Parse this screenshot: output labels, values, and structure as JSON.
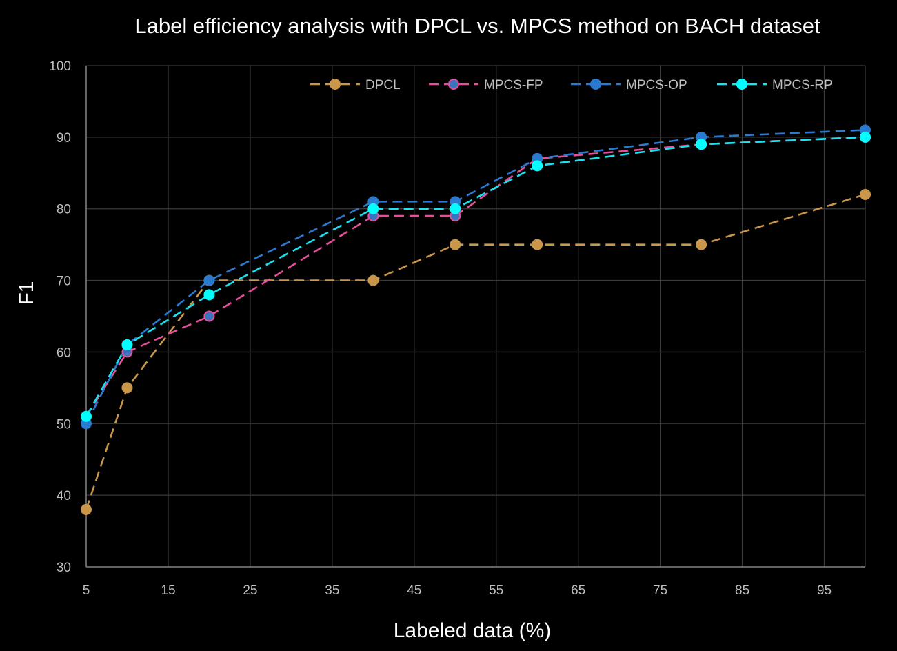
{
  "chart_data": {
    "type": "line",
    "title": "Label efficiency analysis with DPCL vs. MPCS method on BACH dataset",
    "xlabel": "Labeled data (%)",
    "ylabel": "F1",
    "xlim": [
      5,
      100
    ],
    "ylim": [
      30,
      100
    ],
    "xticks": [
      5,
      15,
      25,
      35,
      45,
      55,
      65,
      75,
      85,
      95
    ],
    "yticks": [
      30,
      40,
      50,
      60,
      70,
      80,
      90,
      100
    ],
    "grid": true,
    "legend_position": "top-right",
    "x": [
      5,
      10,
      20,
      40,
      50,
      60,
      80,
      100
    ],
    "series": [
      {
        "name": "DPCL",
        "color": "#c9964a",
        "marker_fill": "#c9964a",
        "marker_edge": "#c9964a",
        "values": [
          38,
          55,
          70,
          70,
          75,
          75,
          75,
          82
        ]
      },
      {
        "name": "MPCS-FP",
        "color": "#e64f9a",
        "marker_fill": "#3c73c0",
        "marker_edge": "#e64f9a",
        "values": [
          51,
          60,
          65,
          79,
          79,
          87,
          89,
          90
        ]
      },
      {
        "name": "MPCS-OP",
        "color": "#2a7ad0",
        "marker_fill": "#2a7ad0",
        "marker_edge": "#2a7ad0",
        "values": [
          50,
          61,
          70,
          81,
          81,
          87,
          90,
          91
        ]
      },
      {
        "name": "MPCS-RP",
        "color": "#19e3f0",
        "marker_fill": "#00ffff",
        "marker_edge": "#00ffff",
        "values": [
          51,
          61,
          68,
          80,
          80,
          86,
          89,
          90
        ]
      }
    ]
  }
}
